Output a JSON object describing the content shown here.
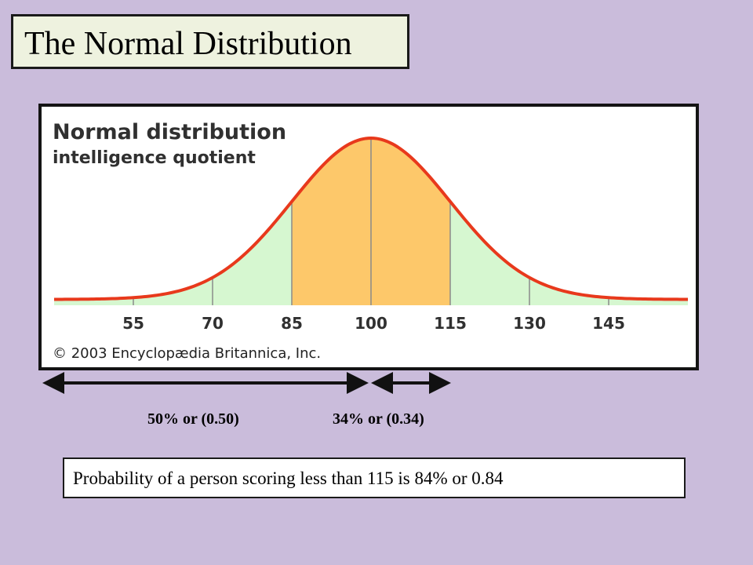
{
  "slide": {
    "title": "The Normal Distribution",
    "result": "Probability of a person scoring less than 115 is 84% or 0.84"
  },
  "figure": {
    "title_line1": "Normal distribution",
    "title_line2": "intelligence quotient",
    "copyright": "© 2003 Encyclopædia Britannica, Inc."
  },
  "annotations": {
    "left_label": "50% or (0.50)",
    "right_label": "34% or (0.34)"
  },
  "colors": {
    "background": "#cabcdb",
    "curve": "#e8391c",
    "tail_fill": "#d6f7d0",
    "center_fill": "#fdc86a"
  },
  "chart_data": {
    "type": "area",
    "title": "Normal distribution intelligence quotient",
    "distribution": "normal",
    "mean": 100,
    "std_dev": 15,
    "x_ticks": [
      55,
      70,
      85,
      100,
      115,
      130,
      145
    ],
    "xlim": [
      40,
      160
    ],
    "shaded_regions": [
      {
        "from": 85,
        "to": 115,
        "color": "#fdc86a"
      },
      {
        "from": 40,
        "to": 85,
        "color": "#d6f7d0"
      },
      {
        "from": 115,
        "to": 160,
        "color": "#d6f7d0"
      }
    ],
    "annotated_intervals": [
      {
        "from": 40,
        "to": 100,
        "probability": 0.5,
        "label": "50% or (0.50)"
      },
      {
        "from": 100,
        "to": 115,
        "probability": 0.34,
        "label": "34% or (0.34)"
      }
    ],
    "result_probability": {
      "less_than": 115,
      "value": 0.84
    },
    "grid": false,
    "legend": "none"
  }
}
